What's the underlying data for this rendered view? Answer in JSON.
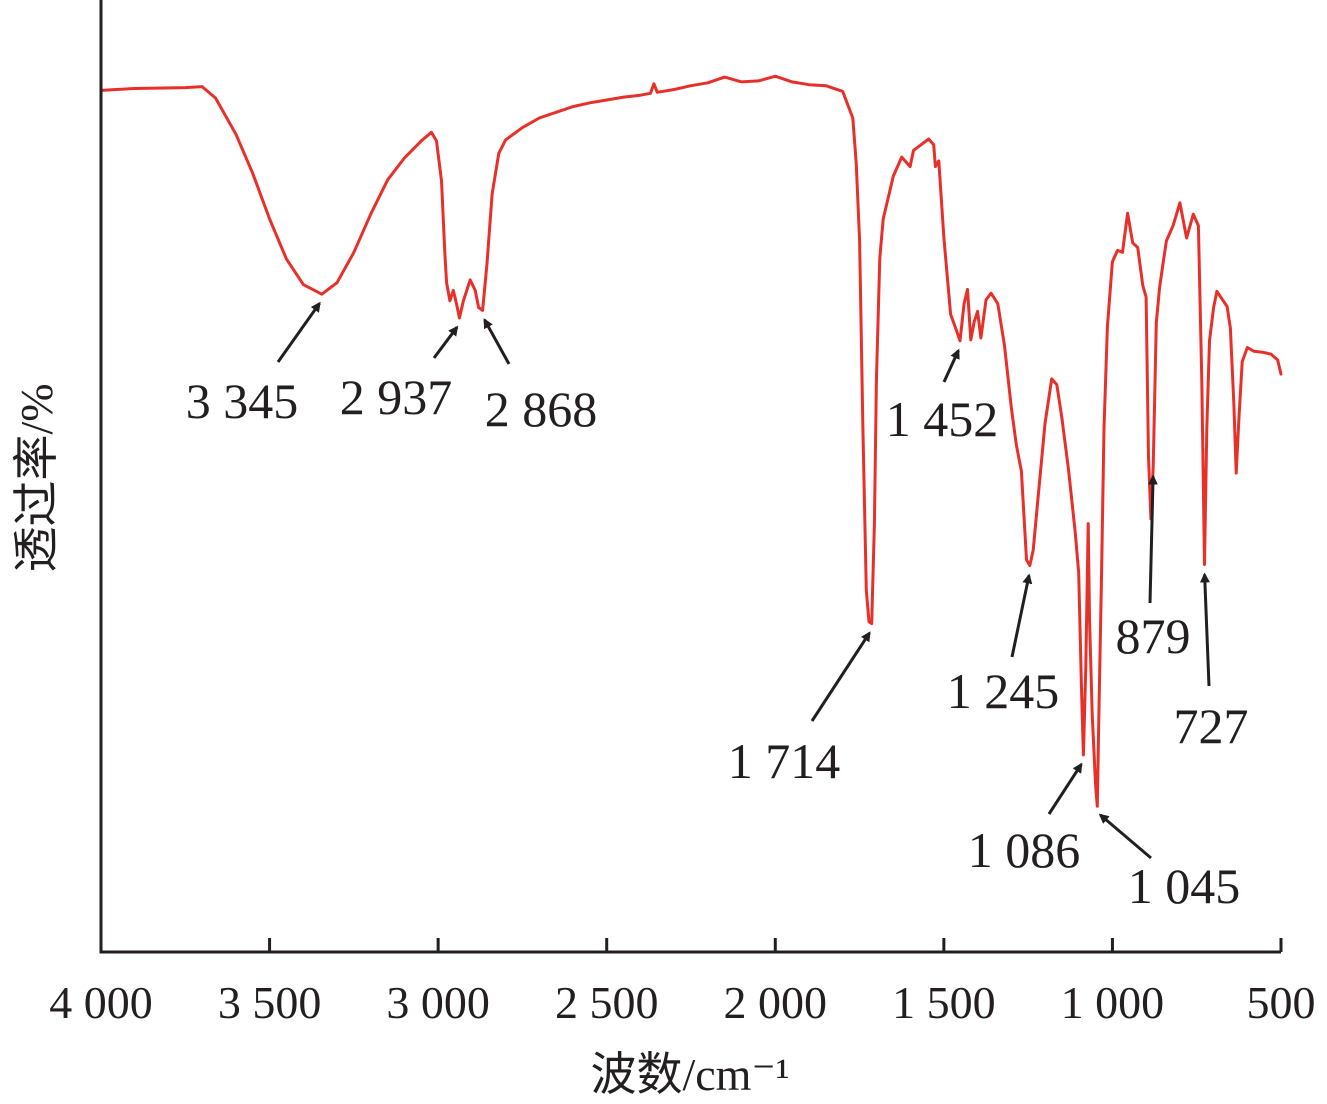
{
  "chart_data": {
    "type": "line",
    "xlabel": "波数/cm⁻¹",
    "ylabel": "透过率/%",
    "xlim": [
      4000,
      500
    ],
    "x_reversed": true,
    "ylim": [
      0,
      100
    ],
    "y_ticks_shown": false,
    "grid": false,
    "legend": "none",
    "x_ticks": [
      {
        "value": 4000,
        "label": "4 000"
      },
      {
        "value": 3500,
        "label": "3 500"
      },
      {
        "value": 3000,
        "label": "3 000"
      },
      {
        "value": 2500,
        "label": "2 500"
      },
      {
        "value": 2000,
        "label": "2 000"
      },
      {
        "value": 1500,
        "label": "1 500"
      },
      {
        "value": 1000,
        "label": "1 000"
      },
      {
        "value": 500,
        "label": "500"
      }
    ],
    "series": [
      {
        "color": "#e8302a",
        "points": [
          [
            4000,
            90.5
          ],
          [
            3900,
            90.7
          ],
          [
            3750,
            90.8
          ],
          [
            3700,
            90.9
          ],
          [
            3660,
            89.7
          ],
          [
            3600,
            85.9
          ],
          [
            3550,
            81.8
          ],
          [
            3500,
            77.0
          ],
          [
            3450,
            72.8
          ],
          [
            3400,
            70.1
          ],
          [
            3345,
            69.1
          ],
          [
            3300,
            70.3
          ],
          [
            3250,
            73.5
          ],
          [
            3200,
            77.5
          ],
          [
            3150,
            81.1
          ],
          [
            3100,
            83.4
          ],
          [
            3050,
            85.2
          ],
          [
            3020,
            86.1
          ],
          [
            3005,
            85.2
          ],
          [
            2990,
            81.0
          ],
          [
            2980,
            73.3
          ],
          [
            2975,
            70.3
          ],
          [
            2965,
            68.4
          ],
          [
            2955,
            69.5
          ],
          [
            2945,
            68.0
          ],
          [
            2937,
            66.6
          ],
          [
            2925,
            68.4
          ],
          [
            2905,
            70.6
          ],
          [
            2890,
            69.5
          ],
          [
            2880,
            67.7
          ],
          [
            2868,
            67.4
          ],
          [
            2855,
            72.3
          ],
          [
            2840,
            79.6
          ],
          [
            2820,
            83.9
          ],
          [
            2800,
            85.3
          ],
          [
            2750,
            86.6
          ],
          [
            2700,
            87.6
          ],
          [
            2650,
            88.2
          ],
          [
            2600,
            88.8
          ],
          [
            2550,
            89.2
          ],
          [
            2500,
            89.5
          ],
          [
            2450,
            89.8
          ],
          [
            2400,
            90.0
          ],
          [
            2370,
            90.2
          ],
          [
            2360,
            91.2
          ],
          [
            2350,
            90.3
          ],
          [
            2300,
            90.6
          ],
          [
            2250,
            91.0
          ],
          [
            2200,
            91.3
          ],
          [
            2150,
            91.9
          ],
          [
            2100,
            91.4
          ],
          [
            2050,
            91.5
          ],
          [
            2000,
            92.0
          ],
          [
            1950,
            91.4
          ],
          [
            1900,
            91.1
          ],
          [
            1850,
            91.0
          ],
          [
            1800,
            90.4
          ],
          [
            1770,
            87.6
          ],
          [
            1760,
            82.9
          ],
          [
            1750,
            74.7
          ],
          [
            1740,
            55.0
          ],
          [
            1730,
            38.0
          ],
          [
            1722,
            34.7
          ],
          [
            1714,
            34.5
          ],
          [
            1706,
            45.0
          ],
          [
            1700,
            60.0
          ],
          [
            1690,
            72.9
          ],
          [
            1680,
            77.0
          ],
          [
            1650,
            81.5
          ],
          [
            1625,
            83.5
          ],
          [
            1600,
            82.5
          ],
          [
            1590,
            84.2
          ],
          [
            1560,
            85.0
          ],
          [
            1545,
            85.4
          ],
          [
            1530,
            84.8
          ],
          [
            1525,
            82.5
          ],
          [
            1515,
            83.1
          ],
          [
            1500,
            75.0
          ],
          [
            1480,
            67.0
          ],
          [
            1465,
            65.5
          ],
          [
            1452,
            64.2
          ],
          [
            1440,
            68.1
          ],
          [
            1430,
            69.6
          ],
          [
            1420,
            64.3
          ],
          [
            1410,
            66.2
          ],
          [
            1400,
            67.3
          ],
          [
            1390,
            64.5
          ],
          [
            1375,
            68.5
          ],
          [
            1360,
            69.2
          ],
          [
            1340,
            68.1
          ],
          [
            1320,
            63.7
          ],
          [
            1300,
            57.2
          ],
          [
            1285,
            53.3
          ],
          [
            1270,
            50.5
          ],
          [
            1255,
            41.2
          ],
          [
            1245,
            40.6
          ],
          [
            1235,
            42.2
          ],
          [
            1220,
            48.0
          ],
          [
            1200,
            55.5
          ],
          [
            1180,
            60.2
          ],
          [
            1165,
            59.6
          ],
          [
            1150,
            56.1
          ],
          [
            1130,
            50.6
          ],
          [
            1110,
            44.0
          ],
          [
            1100,
            39.8
          ],
          [
            1092,
            28.0
          ],
          [
            1086,
            20.7
          ],
          [
            1079,
            30.0
          ],
          [
            1072,
            45.0
          ],
          [
            1068,
            35.0
          ],
          [
            1060,
            25.0
          ],
          [
            1050,
            17.5
          ],
          [
            1045,
            15.3
          ],
          [
            1040,
            25.0
          ],
          [
            1032,
            40.0
          ],
          [
            1025,
            55.0
          ],
          [
            1015,
            65.7
          ],
          [
            1000,
            72.5
          ],
          [
            985,
            73.7
          ],
          [
            970,
            73.5
          ],
          [
            955,
            77.6
          ],
          [
            940,
            74.5
          ],
          [
            925,
            74.0
          ],
          [
            910,
            70.0
          ],
          [
            900,
            68.8
          ],
          [
            893,
            52.0
          ],
          [
            886,
            45.5
          ],
          [
            879,
            51.0
          ],
          [
            870,
            66.1
          ],
          [
            860,
            69.8
          ],
          [
            850,
            72.3
          ],
          [
            840,
            74.7
          ],
          [
            820,
            76.3
          ],
          [
            800,
            78.7
          ],
          [
            780,
            75.0
          ],
          [
            760,
            77.5
          ],
          [
            745,
            76.3
          ],
          [
            735,
            60.0
          ],
          [
            727,
            40.7
          ],
          [
            720,
            55.0
          ],
          [
            712,
            64.2
          ],
          [
            700,
            67.7
          ],
          [
            690,
            69.4
          ],
          [
            675,
            68.6
          ],
          [
            660,
            67.8
          ],
          [
            650,
            65.5
          ],
          [
            640,
            57.7
          ],
          [
            633,
            50.3
          ],
          [
            625,
            56.0
          ],
          [
            615,
            62.0
          ],
          [
            600,
            63.5
          ],
          [
            580,
            63.1
          ],
          [
            555,
            63.0
          ],
          [
            530,
            62.8
          ],
          [
            510,
            62.2
          ],
          [
            500,
            60.7
          ]
        ]
      }
    ],
    "annotations": [
      {
        "label": "3 345",
        "x": 3345
      },
      {
        "label": "2 937",
        "x": 2937
      },
      {
        "label": "2 868",
        "x": 2868
      },
      {
        "label": "1 714",
        "x": 1714
      },
      {
        "label": "1 452",
        "x": 1452
      },
      {
        "label": "1 245",
        "x": 1245
      },
      {
        "label": "1 086",
        "x": 1086
      },
      {
        "label": "1 045",
        "x": 1045
      },
      {
        "label": "879",
        "x": 879
      },
      {
        "label": "727",
        "x": 727
      }
    ]
  }
}
